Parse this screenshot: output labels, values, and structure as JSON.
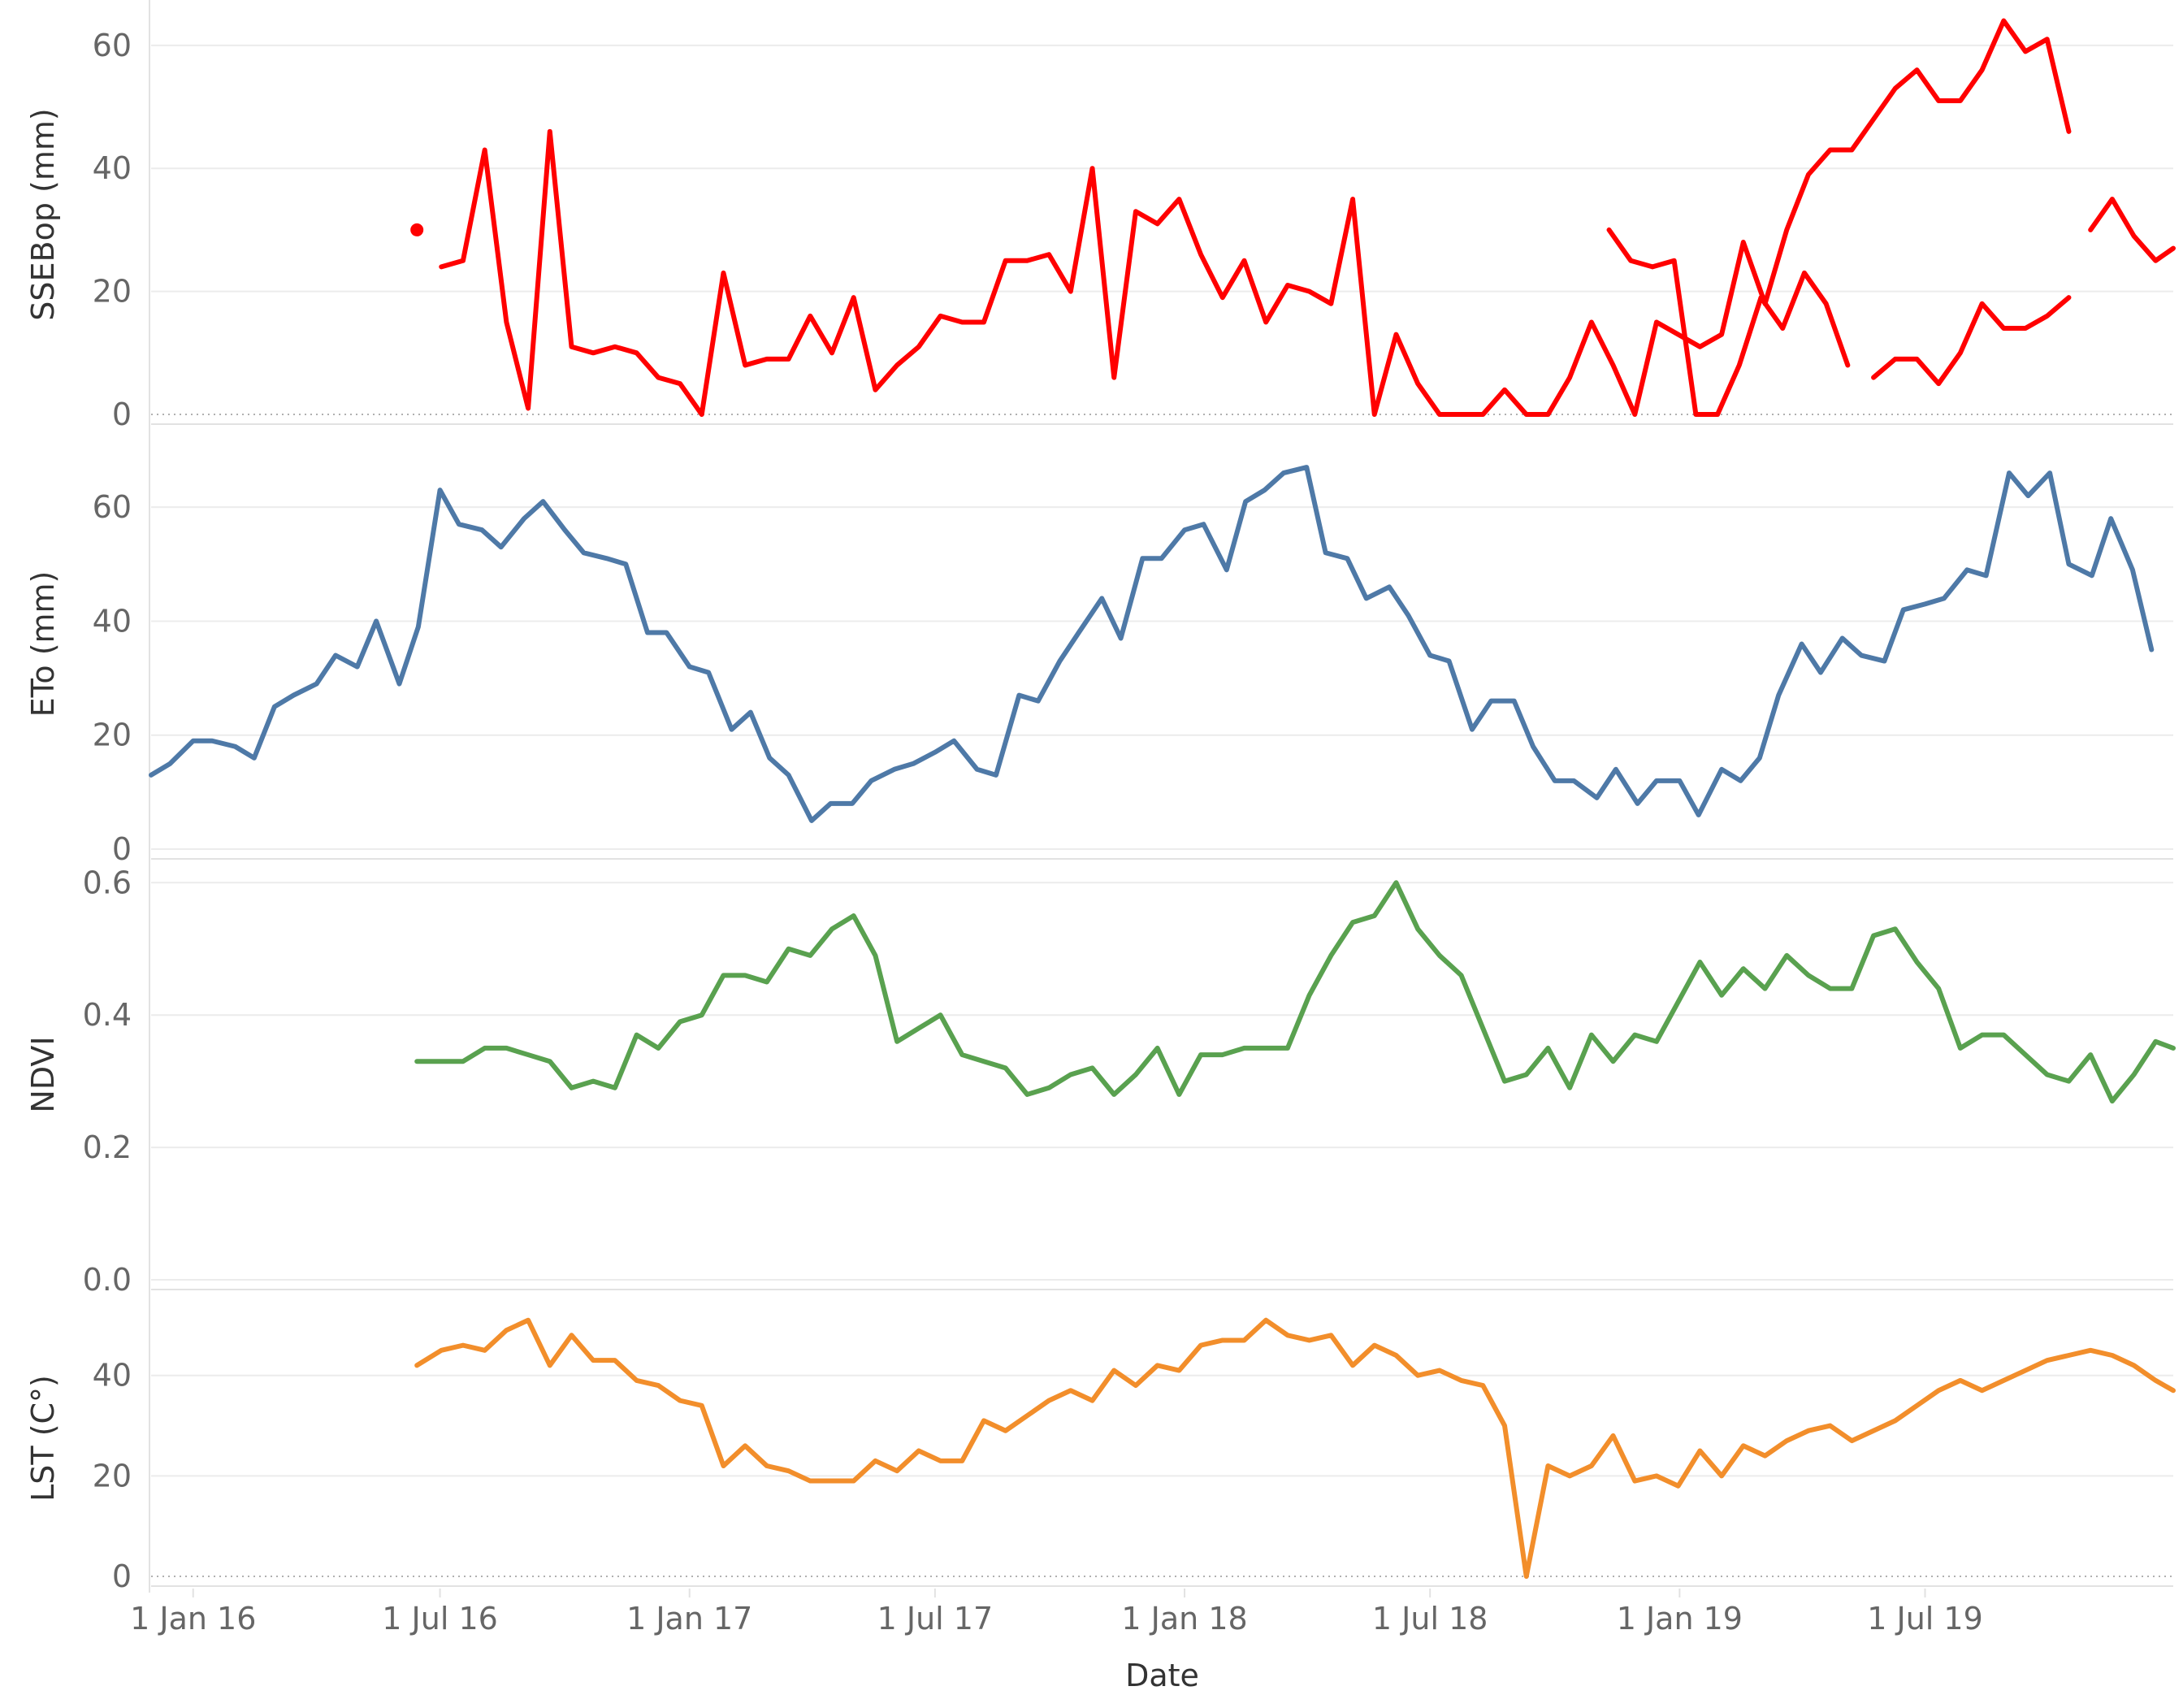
{
  "chart_data": {
    "type": "line",
    "xlabel": "Date",
    "x_range": [
      "2015-12-01",
      "2019-12-31"
    ],
    "x_ticks": [
      {
        "date": "2016-01-01",
        "label": "1 Jan 16"
      },
      {
        "date": "2016-07-01",
        "label": "1 Jul 16"
      },
      {
        "date": "2017-01-01",
        "label": "1 Jan 17"
      },
      {
        "date": "2017-07-01",
        "label": "1 Jul 17"
      },
      {
        "date": "2018-01-01",
        "label": "1 Jan 18"
      },
      {
        "date": "2018-07-01",
        "label": "1 Jul 18"
      },
      {
        "date": "2019-01-01",
        "label": "1 Jan 19"
      },
      {
        "date": "2019-07-01",
        "label": "1 Jul 19"
      }
    ],
    "grid": true,
    "panels": [
      {
        "id": "ssebop",
        "ylabel": "SSEBop (mm)",
        "ylim": [
          0,
          65
        ],
        "yticks": [
          0,
          20,
          40,
          60
        ],
        "tick_labels": [
          "0",
          "20",
          "40",
          "60"
        ],
        "color": "#ff0000",
        "series": [
          {
            "x": "2016-06-14",
            "y": 30,
            "marker": true
          },
          {
            "x": "2016-07-02",
            "y": 24
          },
          {
            "x": "2016-07-18",
            "y": 25
          },
          {
            "x": "2016-08-03",
            "y": 43
          },
          {
            "x": "2016-08-19",
            "y": 15
          },
          {
            "x": "2016-09-04",
            "y": 1
          },
          {
            "x": "2016-09-20",
            "y": 46
          },
          {
            "x": "2016-10-06",
            "y": 11
          },
          {
            "x": "2016-10-22",
            "y": 10
          },
          {
            "x": "2016-11-07",
            "y": 11
          },
          {
            "x": "2016-11-23",
            "y": 10
          },
          {
            "x": "2016-12-09",
            "y": 6
          },
          {
            "x": "2016-12-25",
            "y": 5
          },
          {
            "x": "2017-01-10",
            "y": 0
          },
          {
            "x": "2017-01-26",
            "y": 23
          },
          {
            "x": "2017-02-11",
            "y": 8
          },
          {
            "x": "2017-02-27",
            "y": 9
          },
          {
            "x": "2017-03-15",
            "y": 9
          },
          {
            "x": "2017-03-31",
            "y": 16
          },
          {
            "x": "2017-04-16",
            "y": 10
          },
          {
            "x": "2017-05-02",
            "y": 19
          },
          {
            "x": "2017-05-18",
            "y": 4
          },
          {
            "x": "2017-06-03",
            "y": 8
          },
          {
            "x": "2017-06-19",
            "y": 11
          },
          {
            "x": "2017-07-05",
            "y": 16
          },
          {
            "x": "2017-07-21",
            "y": 15
          },
          {
            "x": "2017-08-06",
            "y": 15
          },
          {
            "x": "2017-08-22",
            "y": 25
          },
          {
            "x": "2017-09-07",
            "y": 25
          },
          {
            "x": "2017-09-23",
            "y": 26
          },
          {
            "x": "2017-10-09",
            "y": 20
          },
          {
            "x": "2017-10-25",
            "y": 40
          },
          {
            "x": "2017-11-10",
            "y": 6
          },
          {
            "x": "2017-11-26",
            "y": 33
          },
          {
            "x": "2017-12-12",
            "y": 31
          },
          {
            "x": "2017-12-28",
            "y": 35
          },
          {
            "x": "2018-01-13",
            "y": 26
          },
          {
            "x": "2018-01-29",
            "y": 19
          },
          {
            "x": "2018-02-14",
            "y": 25
          },
          {
            "x": "2018-03-02",
            "y": 15
          },
          {
            "x": "2018-03-18",
            "y": 21
          },
          {
            "x": "2018-04-03",
            "y": 20
          },
          {
            "x": "2018-04-19",
            "y": 18
          },
          {
            "x": "2018-05-05",
            "y": 35
          },
          {
            "x": "2018-05-21",
            "y": 0
          },
          {
            "x": "2018-06-06",
            "y": 13
          },
          {
            "x": "2018-06-22",
            "y": 5
          },
          {
            "x": "2018-07-08",
            "y": 0
          },
          {
            "x": "2018-07-24",
            "y": 0
          },
          {
            "x": "2018-08-09",
            "y": 0
          },
          {
            "x": "2018-08-25",
            "y": 4
          },
          {
            "x": "2018-09-10",
            "y": 0
          },
          {
            "x": "2018-09-26",
            "y": 0
          },
          {
            "x": "2018-10-12",
            "y": 6
          },
          {
            "x": "2018-10-28",
            "y": 15
          },
          {
            "x": "2018-11-13",
            "y": 8
          },
          {
            "x": "2018-11-29",
            "y": 0
          },
          {
            "x": "2018-12-15",
            "y": 15
          },
          {
            "x": "2018-12-31",
            "y": 13
          },
          {
            "x": "2019-01-16",
            "y": 11
          },
          {
            "x": "2019-02-01",
            "y": 13
          },
          {
            "x": "2019-02-17",
            "y": 28
          },
          {
            "x": "2019-03-05",
            "y": 18
          },
          {
            "x": "2019-03-21",
            "y": 30
          },
          {
            "x": "2019-04-06",
            "y": 39
          },
          {
            "x": "2019-04-22",
            "y": 43
          },
          {
            "x": "2019-05-08",
            "y": 43
          },
          {
            "x": "2019-05-24",
            "y": 48
          },
          {
            "x": "2019-06-09",
            "y": 53
          },
          {
            "x": "2019-06-25",
            "y": 56
          },
          {
            "x": "2019-07-11",
            "y": 51
          },
          {
            "x": "2019-07-27",
            "y": 51
          },
          {
            "x": "2019-08-12",
            "y": 56
          },
          {
            "x": "2019-08-28",
            "y": 64
          },
          {
            "x": "2019-09-13",
            "y": 59
          },
          {
            "x": "2019-09-29",
            "y": 61
          },
          {
            "x": "2019-10-15",
            "y": 46
          }
        ]
      }
    ]
  }
}
